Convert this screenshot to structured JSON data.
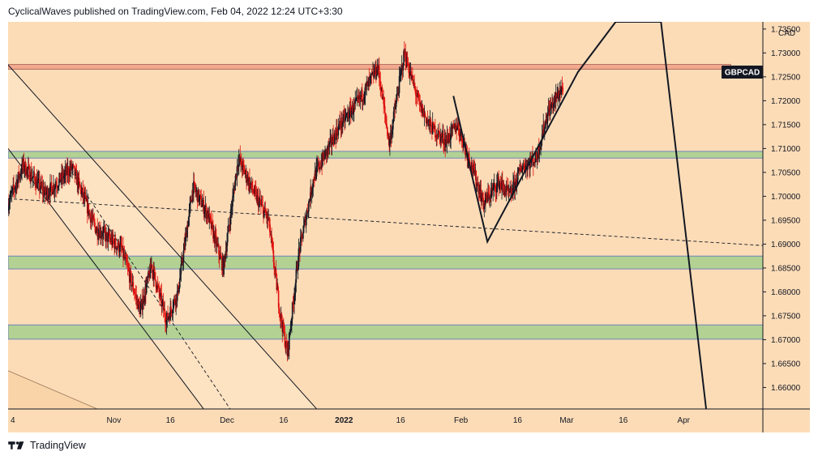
{
  "header": {
    "publish_line": "CyclicalWaves published on TradingView.com, Feb 04, 2022 12:24 UTC+3:30"
  },
  "footer": {
    "brand": "TradingView",
    "logo_icon": "tradingview-logo-icon"
  },
  "colors": {
    "background": "#fcdcb7",
    "candle_up": "#131722",
    "candle_down": "#e0110e",
    "support_zone": "#b2d193",
    "resistance_zone": "#f2a88f",
    "zone_border": "#5570c2",
    "symbol_badge": "#131722"
  },
  "chart_data": {
    "type": "candlestick",
    "symbol_label": "GBPCAD",
    "currency_label": "CAD",
    "x_tick_labels": [
      "4",
      "Nov",
      "16",
      "Dec",
      "16",
      "2022",
      "16",
      "Feb",
      "16",
      "Mar",
      "16",
      "Apr"
    ],
    "y_tick_labels": [
      "1.73500",
      "1.73000",
      "1.72500",
      "1.72000",
      "1.71500",
      "1.71000",
      "1.70500",
      "1.70000",
      "1.69500",
      "1.69000",
      "1.68500",
      "1.68000",
      "1.67500",
      "1.67000",
      "1.66500",
      "1.66000"
    ],
    "ylim": [
      1.6555,
      1.7365
    ],
    "x_start": "2021-10-04",
    "x_end": "2022-04-22",
    "series": [
      {
        "values": [
          [
            "2021-10-04",
            1.6985
          ],
          [
            "2021-10-08",
            1.7065
          ],
          [
            "2021-10-14",
            1.7005
          ],
          [
            "2021-10-21",
            1.706
          ],
          [
            "2021-10-27",
            1.6935
          ],
          [
            "2021-11-03",
            1.689
          ],
          [
            "2021-11-08",
            1.676
          ],
          [
            "2021-11-11",
            1.6855
          ],
          [
            "2021-11-15",
            1.674
          ],
          [
            "2021-11-18",
            1.68
          ],
          [
            "2021-11-22",
            1.702
          ],
          [
            "2021-11-26",
            1.696
          ],
          [
            "2021-11-30",
            1.685
          ],
          [
            "2021-12-04",
            1.708
          ],
          [
            "2021-12-08",
            1.701
          ],
          [
            "2021-12-12",
            1.695
          ],
          [
            "2021-12-15",
            1.676
          ],
          [
            "2021-12-17",
            1.667
          ],
          [
            "2021-12-20",
            1.688
          ],
          [
            "2021-12-24",
            1.704
          ],
          [
            "2021-12-31",
            1.715
          ],
          [
            "2022-01-05",
            1.72
          ],
          [
            "2022-01-10",
            1.727
          ],
          [
            "2022-01-13",
            1.711
          ],
          [
            "2022-01-17",
            1.73
          ],
          [
            "2022-01-21",
            1.719
          ],
          [
            "2022-01-24",
            1.7145
          ],
          [
            "2022-01-28",
            1.7115
          ],
          [
            "2022-01-31",
            1.715
          ],
          [
            "2022-02-04",
            1.706
          ],
          [
            "2022-02-07",
            1.6985
          ],
          [
            "2022-02-11",
            1.703
          ],
          [
            "2022-02-14",
            1.7
          ],
          [
            "2022-02-17",
            1.706
          ],
          [
            "2022-02-21",
            1.708
          ],
          [
            "2022-02-24",
            1.7175
          ],
          [
            "2022-02-28",
            1.723
          ]
        ]
      }
    ],
    "horizontal_zones": [
      {
        "kind": "resistance",
        "from": 1.727,
        "to": 1.7276
      },
      {
        "kind": "support",
        "from": 1.708,
        "to": 1.7094
      },
      {
        "kind": "support",
        "from": 1.6848,
        "to": 1.6875
      },
      {
        "kind": "support",
        "from": 1.6701,
        "to": 1.6731
      }
    ],
    "trend_lines": [
      {
        "style": "solid",
        "points": [
          [
            "2021-10-04",
            1.7275
          ],
          [
            "2021-12-25",
            1.6553
          ]
        ]
      },
      {
        "style": "solid",
        "points": [
          [
            "2021-10-04",
            1.71
          ],
          [
            "2021-11-25",
            1.6553
          ]
        ]
      },
      {
        "style": "dashed",
        "points": [
          [
            "2021-10-20",
            1.706
          ],
          [
            "2021-12-02",
            1.6553
          ]
        ]
      },
      {
        "style": "dashed",
        "points": [
          [
            "2021-10-04",
            1.6995
          ],
          [
            "2022-04-22",
            1.6897
          ]
        ]
      }
    ],
    "forecast_path": [
      [
        "2022-01-30",
        1.721
      ],
      [
        "2022-02-08",
        1.6905
      ],
      [
        "2022-03-04",
        1.726
      ],
      [
        "2022-03-14",
        1.7365
      ],
      [
        "2022-03-26",
        1.7365
      ],
      [
        "2022-04-07",
        1.6553
      ]
    ]
  }
}
